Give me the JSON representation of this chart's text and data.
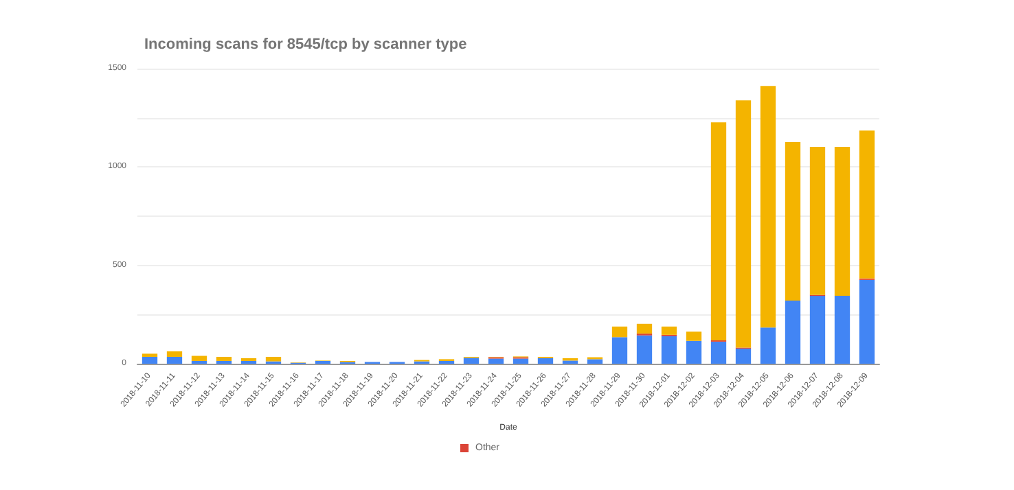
{
  "chart_data": {
    "type": "bar",
    "title": "Incoming scans for 8545/tcp by scanner type",
    "xlabel": "Date",
    "categories": [
      "2018-11-10",
      "2018-11-11",
      "2018-11-12",
      "2018-11-13",
      "2018-11-14",
      "2018-11-15",
      "2018-11-16",
      "2018-11-17",
      "2018-11-18",
      "2018-11-19",
      "2018-11-20",
      "2018-11-21",
      "2018-11-22",
      "2018-11-23",
      "2018-11-24",
      "2018-11-25",
      "2018-11-26",
      "2018-11-27",
      "2018-11-28",
      "2018-11-29",
      "2018-11-30",
      "2018-12-01",
      "2018-12-02",
      "2018-12-03",
      "2018-12-04",
      "2018-12-05",
      "2018-12-06",
      "2018-12-07",
      "2018-12-08",
      "2018-12-09"
    ],
    "stacked": true,
    "series": [
      {
        "color": "#4285f4",
        "values": [
          35,
          35,
          14,
          14,
          14,
          12,
          5,
          14,
          9,
          9,
          9,
          12,
          14,
          30,
          26,
          26,
          28,
          16,
          23,
          135,
          144,
          140,
          116,
          112,
          77,
          184,
          321,
          345,
          345,
          426
        ]
      },
      {
        "name": "Other",
        "color": "#db4437",
        "values": [
          0,
          0,
          0,
          0,
          0,
          0,
          0,
          0,
          0,
          0,
          0,
          0,
          0,
          0,
          7,
          7,
          0,
          0,
          0,
          0,
          9,
          7,
          0,
          7,
          5,
          0,
          0,
          5,
          0,
          7
        ]
      },
      {
        "color": "#f4b400",
        "values": [
          16,
          28,
          26,
          21,
          14,
          23,
          2,
          2,
          5,
          null,
          null,
          7,
          9,
          5,
          2,
          4,
          7,
          12,
          10,
          54,
          50,
          42,
          47,
          1108,
          1257,
          1228,
          806,
          752,
          757,
          752
        ]
      }
    ],
    "ylim": [
      0,
      1500
    ],
    "yticks": [
      0,
      {
        "value": 250,
        "label": null
      },
      500,
      {
        "value": 750,
        "label": null
      },
      1000,
      {
        "value": 1250,
        "label": null
      },
      1500
    ],
    "grid": "y",
    "legend": "bottom"
  }
}
